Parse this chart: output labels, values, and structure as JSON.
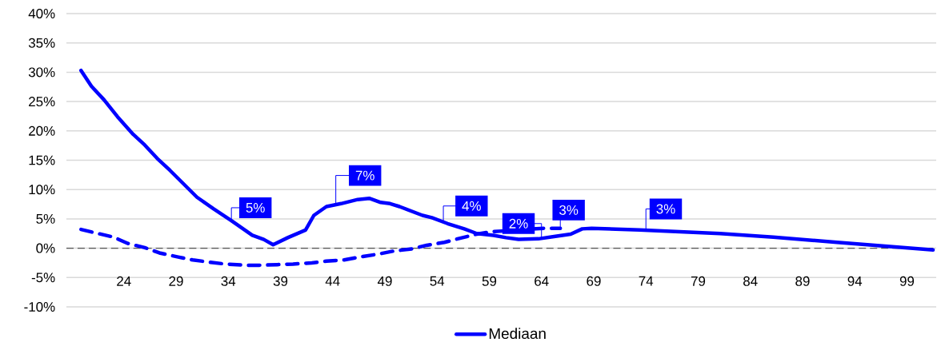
{
  "chart_data": {
    "type": "line",
    "xlim": [
      18.5,
      101.8
    ],
    "xticks": [
      24,
      29,
      34,
      39,
      44,
      49,
      54,
      59,
      64,
      69,
      74,
      79,
      84,
      89,
      94,
      99
    ],
    "ylim": [
      -10,
      40
    ],
    "yticks": [
      {
        "value": -10,
        "label": "-10%"
      },
      {
        "value": -5,
        "label": "-5%"
      },
      {
        "value": 0,
        "label": "0%"
      },
      {
        "value": 5,
        "label": "5%"
      },
      {
        "value": 10,
        "label": "10%"
      },
      {
        "value": 15,
        "label": "15%"
      },
      {
        "value": 20,
        "label": "20%"
      },
      {
        "value": 25,
        "label": "25%"
      },
      {
        "value": 30,
        "label": "30%"
      },
      {
        "value": 35,
        "label": "35%"
      },
      {
        "value": 40,
        "label": "40%"
      }
    ],
    "grid": "y",
    "legend": "bottom",
    "marker": "none",
    "series": [
      {
        "name": "Mediaan",
        "color": "#0000ff",
        "line_style": "solid",
        "x": [
          19.9,
          20.9,
          22.1,
          23.4,
          24.9,
          26,
          27.2,
          28.4,
          31,
          32.6,
          34.3,
          36.3,
          37.4,
          38.3,
          39.7,
          41.4,
          42.2,
          43.4,
          44.8,
          46.4,
          47.5,
          48.6,
          49.5,
          50.4,
          52.6,
          53.5,
          55,
          56.6,
          57.8,
          59.4,
          60.6,
          61.8,
          63.7,
          65.2,
          66.8,
          67.9,
          68.8,
          73.4,
          81.1,
          86.2,
          92.3,
          101.5
        ],
        "values": [
          30.3,
          27.6,
          25.3,
          22.4,
          19.4,
          17.6,
          15.3,
          13.3,
          8.7,
          6.7,
          4.7,
          2.2,
          1.5,
          0.6,
          1.8,
          3.1,
          5.6,
          7.1,
          7.6,
          8.3,
          8.5,
          7.8,
          7.6,
          7.1,
          5.6,
          5.2,
          4.2,
          3.3,
          2.5,
          2.2,
          1.8,
          1.5,
          1.6,
          2.0,
          2.4,
          3.3,
          3.4,
          3.1,
          2.5,
          1.9,
          1.0,
          -0.3
        ]
      },
      {
        "color": "#0000ff",
        "line_style": "dashed",
        "x": [
          19.9,
          21.3,
          23,
          24.4,
          26,
          27.4,
          29.2,
          30.6,
          32.3,
          33.7,
          35.6,
          37,
          38.7,
          40.2,
          42,
          43.4,
          45.1,
          46.6,
          48.4,
          49.8,
          51.6,
          53,
          54.7,
          56.2,
          57.8,
          59.2,
          64.2,
          65.8
        ],
        "values": [
          3.2,
          2.6,
          1.9,
          0.8,
          0.1,
          -0.8,
          -1.5,
          -2.0,
          -2.4,
          -2.7,
          -2.9,
          -2.9,
          -2.8,
          -2.7,
          -2.5,
          -2.2,
          -2.0,
          -1.5,
          -1.0,
          -0.5,
          -0.1,
          0.5,
          1.0,
          1.7,
          2.4,
          2.8,
          3.4,
          3.4
        ]
      }
    ],
    "ref_lines": [
      {
        "axis": "y",
        "value": 0,
        "color": "#555555",
        "line_style": "dashed"
      }
    ],
    "annotations": [
      {
        "text": "5%",
        "x": 34.3,
        "y": 4.7
      },
      {
        "text": "7%",
        "x": 44.3,
        "y": 7.4
      },
      {
        "text": "4%",
        "x": 54.6,
        "y": 4.3
      },
      {
        "text": "2%",
        "x": 64.0,
        "y": 1.7
      },
      {
        "text": "3%",
        "x": 65.8,
        "y": 3.4
      },
      {
        "text": "3%",
        "x": 74.0,
        "y": 3.0
      }
    ]
  }
}
